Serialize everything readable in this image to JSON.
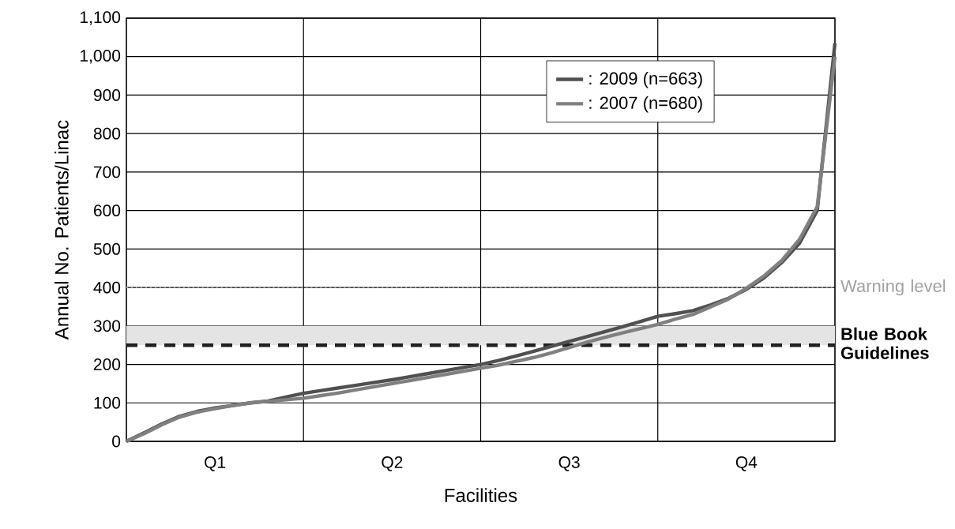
{
  "chart_data": {
    "type": "line",
    "xlabel": "Facilities",
    "ylabel": "Annual No. Patients/Linac",
    "categories": [
      null,
      null,
      null,
      null,
      null,
      "Q1",
      null,
      null,
      null,
      null,
      null,
      null,
      null,
      null,
      null,
      "Q2",
      null,
      null,
      null,
      null,
      null,
      null,
      null,
      null,
      null,
      "Q3",
      null,
      null,
      null,
      null,
      null,
      null,
      null,
      null,
      null,
      "Q4",
      null,
      null,
      null,
      null,
      null
    ],
    "ylim": [
      0,
      1100
    ],
    "yticks": [
      0,
      100,
      200,
      300,
      400,
      500,
      600,
      700,
      800,
      900,
      {
        "value": 1000,
        "label": "1,000"
      },
      {
        "value": 1100,
        "label": "1,100"
      }
    ],
    "grid": true,
    "legend": "top right",
    "line_style": "solid",
    "series": [
      {
        "name": ":  2009 (n=663)",
        "color": "#505050",
        "values": [
          0,
          22,
          45,
          65,
          78,
          87,
          93,
          100,
          105,
          115,
          125,
          132,
          139,
          146,
          153,
          160,
          168,
          176,
          184,
          192,
          200,
          210,
          222,
          234,
          247,
          260,
          272,
          285,
          298,
          311,
          325,
          332,
          340,
          355,
          372,
          395,
          425,
          465,
          515,
          600,
          1035
        ]
      },
      {
        "name": ":  2007 (n=680)",
        "color": "#808080",
        "values": [
          0,
          20,
          43,
          63,
          76,
          85,
          93,
          100,
          104,
          108,
          112,
          119,
          126,
          134,
          142,
          150,
          158,
          166,
          174,
          182,
          190,
          198,
          208,
          218,
          230,
          244,
          258,
          270,
          282,
          293,
          304,
          318,
          330,
          350,
          370,
          398,
          430,
          470,
          525,
          610,
          1000
        ]
      }
    ],
    "ref_lines": [
      {
        "axis": "y",
        "value": 400,
        "label": "Warning level",
        "color": "#a0a0a0",
        "line_style": "dotted"
      },
      {
        "axis": "y",
        "value": 250,
        "color": "#202020",
        "line_style": "dashed"
      }
    ],
    "bands": [
      {
        "axis": "y",
        "from": 250,
        "to": 300,
        "label": "**Blue Book Guidelines**",
        "color": "#e4e4e4"
      }
    ]
  }
}
